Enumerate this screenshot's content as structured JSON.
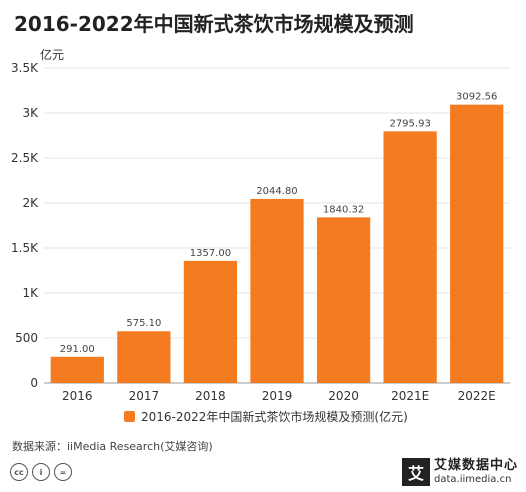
{
  "title": "2016-2022年中国新式茶饮市场规模及预测",
  "unit": "亿元",
  "legend_label": "2016-2022年中国新式茶饮市场规模及预测(亿元)",
  "source": "数据来源：iiMedia Research(艾媒咨询)",
  "brand": {
    "name": "艾媒数据中心",
    "url": "data.iimedia.cn",
    "mark": "艾"
  },
  "license_icons": [
    "cc-icon",
    "by-icon",
    "nd-icon"
  ],
  "colors": {
    "bar": "#F47B20",
    "grid": "#E5E5E5",
    "axis": "#999999"
  },
  "chart_data": {
    "type": "bar",
    "categories": [
      "2016",
      "2017",
      "2018",
      "2019",
      "2020",
      "2021E",
      "2022E"
    ],
    "values": [
      291.0,
      575.1,
      1357.0,
      2044.8,
      1840.32,
      2795.93,
      3092.56
    ],
    "value_labels": [
      "291.00",
      "575.10",
      "1357.00",
      "2044.80",
      "1840.32",
      "2795.93",
      "3092.56"
    ],
    "title": "2016-2022年中国新式茶饮市场规模及预测",
    "ylabel": "亿元",
    "ylim": [
      0,
      3500
    ],
    "yticks": [
      0,
      500,
      1000,
      1500,
      2000,
      2500,
      3000,
      3500
    ],
    "ytick_labels": [
      "0",
      "500",
      "1K",
      "1.5K",
      "2K",
      "2.5K",
      "3K",
      "3.5K"
    ],
    "grid": true,
    "legend": "bottom"
  }
}
